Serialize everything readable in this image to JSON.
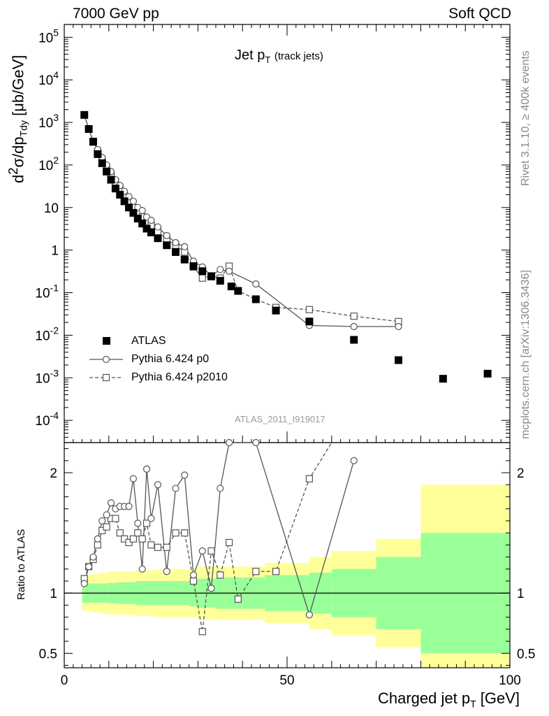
{
  "header": {
    "left": "7000 GeV pp",
    "right": "Soft QCD"
  },
  "side_labels": {
    "rivet": "Rivet 3.1.10, ≥ 400k events",
    "mcplots": "mcplots.cern.ch [arXiv:1306.3436]"
  },
  "plot_title": {
    "main": "Jet p",
    "sub": "T",
    "note": "(track jets)"
  },
  "analysis_tag": "ATLAS_2011_I919017",
  "y_axis": {
    "label_pre": "d",
    "label_sup": "2",
    "label_mid": "σ/dp",
    "label_sub": "Tdy",
    "label_post": " [μb/GeV]"
  },
  "ratio_axis": {
    "label": "Ratio to ATLAS"
  },
  "x_axis": {
    "label_pre": "Charged jet p",
    "label_sub": "T",
    "label_post": " [GeV]"
  },
  "legend": [
    {
      "name": "ATLAS",
      "marker": "filled-square"
    },
    {
      "name": "Pythia 6.424 p0",
      "marker": "open-circle",
      "line": "solid"
    },
    {
      "name": "Pythia 6.424 p2010",
      "marker": "open-square",
      "line": "dashed"
    }
  ],
  "colors": {
    "band_inner": "#99ff99",
    "band_outer": "#ffff99",
    "mc": "#555555",
    "data": "#000000"
  },
  "chart_data": {
    "type": "scatter",
    "main": {
      "y_scale": "log",
      "xlim": [
        0,
        100
      ],
      "ylim": [
        3e-05,
        200000
      ],
      "y_ticks": [
        "10^-4",
        "10^-3",
        "10^-2",
        "10^-1",
        "1",
        "10",
        "10^2",
        "10^3",
        "10^4",
        "10^5"
      ],
      "series": [
        {
          "name": "ATLAS",
          "x": [
            4.5,
            5.5,
            6.5,
            7.5,
            8.5,
            9.5,
            10.5,
            11.5,
            12.5,
            13.5,
            14.5,
            15.5,
            16.5,
            17.5,
            18.5,
            19.5,
            21,
            23,
            25,
            27,
            29,
            31,
            33,
            35,
            37.5,
            39,
            43,
            47.5,
            55,
            65,
            75,
            85,
            95
          ],
          "y": [
            1500,
            700,
            350,
            180,
            110,
            70,
            45,
            28,
            20,
            14,
            10,
            7.5,
            5.5,
            4.2,
            3.2,
            2.6,
            1.9,
            1.3,
            0.9,
            0.6,
            0.42,
            0.32,
            0.24,
            0.19,
            0.14,
            0.11,
            0.07,
            0.038,
            0.021,
            0.0078,
            0.0026,
            0.00095,
            0.00125
          ]
        },
        {
          "name": "Pythia 6.424 p0",
          "x": [
            4.5,
            5.5,
            6.5,
            7.5,
            8.5,
            9.5,
            10.5,
            11.5,
            12.5,
            13.5,
            14.5,
            15.5,
            16.5,
            17.5,
            18.5,
            19.5,
            21,
            23,
            25,
            27,
            29,
            31,
            33,
            35,
            37,
            43,
            55,
            65,
            75
          ],
          "y": [
            1500,
            700,
            360,
            230,
            150,
            100,
            70,
            45,
            33,
            24,
            18,
            14,
            10,
            8.5,
            6,
            5,
            3.5,
            2.2,
            1.5,
            1.2,
            0.55,
            0.4,
            0.25,
            0.35,
            0.32,
            0.16,
            0.017,
            0.016,
            0.016
          ]
        },
        {
          "name": "Pythia 6.424 p2010",
          "x": [
            4.5,
            5.5,
            6.5,
            7.5,
            8.5,
            9.5,
            10.5,
            11.5,
            12.5,
            13.5,
            14.5,
            15.5,
            16.5,
            17.5,
            18.5,
            19.5,
            21,
            23,
            25,
            27,
            29,
            31,
            33,
            35,
            37,
            39,
            43,
            47.5,
            55,
            65,
            75
          ],
          "y": [
            1500,
            700,
            360,
            210,
            130,
            90,
            60,
            40,
            28,
            19,
            14,
            10,
            7.5,
            6,
            4.5,
            3.8,
            2.7,
            1.8,
            1.3,
            0.9,
            0.4,
            0.22,
            0.25,
            0.22,
            0.42,
            0.11,
            0.07,
            0.045,
            0.04,
            0.028,
            0.021
          ]
        }
      ]
    },
    "ratio": {
      "xlim": [
        0,
        100
      ],
      "ylim": [
        0.38,
        2.25
      ],
      "y_ticks": [
        0.5,
        1,
        2
      ],
      "x_ticks": [
        0,
        50,
        100
      ],
      "band_bins": [
        4,
        6,
        8,
        10,
        12,
        14,
        16,
        18,
        20,
        22,
        24,
        26,
        28,
        30,
        32,
        34,
        36,
        38,
        40,
        45,
        50,
        55,
        60,
        70,
        80,
        90,
        100
      ],
      "band_inner": [
        0.08,
        0.08,
        0.08,
        0.085,
        0.09,
        0.09,
        0.1,
        0.1,
        0.1,
        0.1,
        0.1,
        0.1,
        0.11,
        0.12,
        0.12,
        0.13,
        0.13,
        0.13,
        0.13,
        0.15,
        0.15,
        0.17,
        0.2,
        0.3,
        0.5,
        0.5
      ],
      "band_outer": [
        0.15,
        0.16,
        0.17,
        0.18,
        0.18,
        0.18,
        0.19,
        0.19,
        0.2,
        0.2,
        0.2,
        0.2,
        0.2,
        0.22,
        0.22,
        0.22,
        0.22,
        0.22,
        0.22,
        0.25,
        0.25,
        0.3,
        0.35,
        0.45,
        0.9,
        0.9
      ],
      "series": [
        {
          "name": "Pythia 6.424 p0",
          "x": [
            4.5,
            5.5,
            6.5,
            7.5,
            8.5,
            9.5,
            10.5,
            11.5,
            12.5,
            13.5,
            14.5,
            15.5,
            16.5,
            17.5,
            18.5,
            19.5,
            21,
            23,
            25,
            27,
            29,
            31,
            33,
            35,
            37,
            43,
            55,
            65
          ],
          "y": [
            1.08,
            1.22,
            1.3,
            1.45,
            1.6,
            1.65,
            1.75,
            1.7,
            1.72,
            1.72,
            1.72,
            1.95,
            1.58,
            1.2,
            2.03,
            1.62,
            1.9,
            1.18,
            1.87,
            1.98,
            1.15,
            1.35,
            1.04,
            1.87,
            2.25,
            2.25,
            0.82,
            2.1
          ]
        },
        {
          "name": "Pythia 6.424 p2010",
          "x": [
            4.5,
            5.5,
            6.5,
            7.5,
            8.5,
            9.5,
            10.5,
            11.5,
            12.5,
            13.5,
            14.5,
            15.5,
            16.5,
            17.5,
            18.5,
            19.5,
            21,
            23,
            25,
            27,
            29,
            31,
            33,
            35,
            37,
            39,
            43,
            47.5,
            55,
            60
          ],
          "y": [
            1.12,
            1.22,
            1.28,
            1.4,
            1.52,
            1.55,
            1.62,
            1.62,
            1.5,
            1.45,
            1.42,
            1.45,
            1.5,
            1.45,
            1.58,
            1.4,
            1.38,
            1.38,
            1.5,
            1.5,
            1.1,
            0.68,
            1.35,
            1.15,
            1.42,
            0.95,
            1.18,
            1.18,
            1.95,
            2.25
          ]
        }
      ]
    }
  }
}
